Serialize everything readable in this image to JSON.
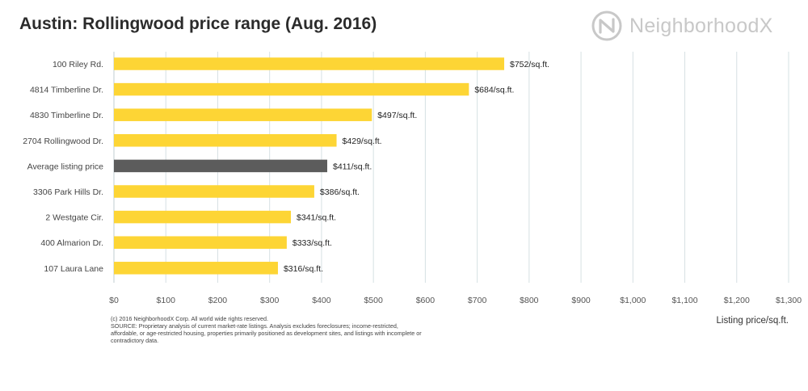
{
  "header": {
    "title": "Austin: Rollingwood price range (Aug. 2016)",
    "logo_text": "NeighborhoodX"
  },
  "footnote": {
    "copyright": "(c) 2016 NeighborhoodX Corp. All world wide rights reserved.",
    "source": "SOURCE: Proprietary analysis of current market-rate listings. Analysis excludes foreclosures; income-restricted, affordable, or age-restricted housing, properties primarily positioned as development sites, and listings with incomplete or contradictory data."
  },
  "colors": {
    "bar": "#fdd535",
    "highlight_bar": "#5c5c5c",
    "grid": "#d6e0e3",
    "logo": "#c8c8c8"
  },
  "chart_data": {
    "type": "bar",
    "orientation": "horizontal",
    "title": "Austin: Rollingwood price range (Aug. 2016)",
    "xlabel": "Listing price/sq.ft.",
    "ylabel": "",
    "xlim": [
      0,
      1300
    ],
    "xticks": [
      0,
      100,
      200,
      300,
      400,
      500,
      600,
      700,
      800,
      900,
      1000,
      1100,
      1200,
      1300
    ],
    "xtick_labels": [
      "$0",
      "$100",
      "$200",
      "$300",
      "$400",
      "$500",
      "$600",
      "$700",
      "$800",
      "$900",
      "$1,000",
      "$1,100",
      "$1,200",
      "$1,300"
    ],
    "grid": true,
    "categories": [
      "100 Riley Rd.",
      "4814 Timberline Dr.",
      "4830 Timberline Dr.",
      "2704 Rollingwood Dr.",
      "Average listing price",
      "3306 Park Hills Dr.",
      "2 Westgate Cir.",
      "400 Almarion Dr.",
      "107 Laura Lane"
    ],
    "values": [
      752,
      684,
      497,
      429,
      411,
      386,
      341,
      333,
      316
    ],
    "value_labels": [
      "$752/sq.ft.",
      "$684/sq.ft.",
      "$497/sq.ft.",
      "$429/sq.ft.",
      "$411/sq.ft.",
      "$386/sq.ft.",
      "$341/sq.ft.",
      "$333/sq.ft.",
      "$316/sq.ft."
    ],
    "highlight_category": "Average listing price"
  }
}
